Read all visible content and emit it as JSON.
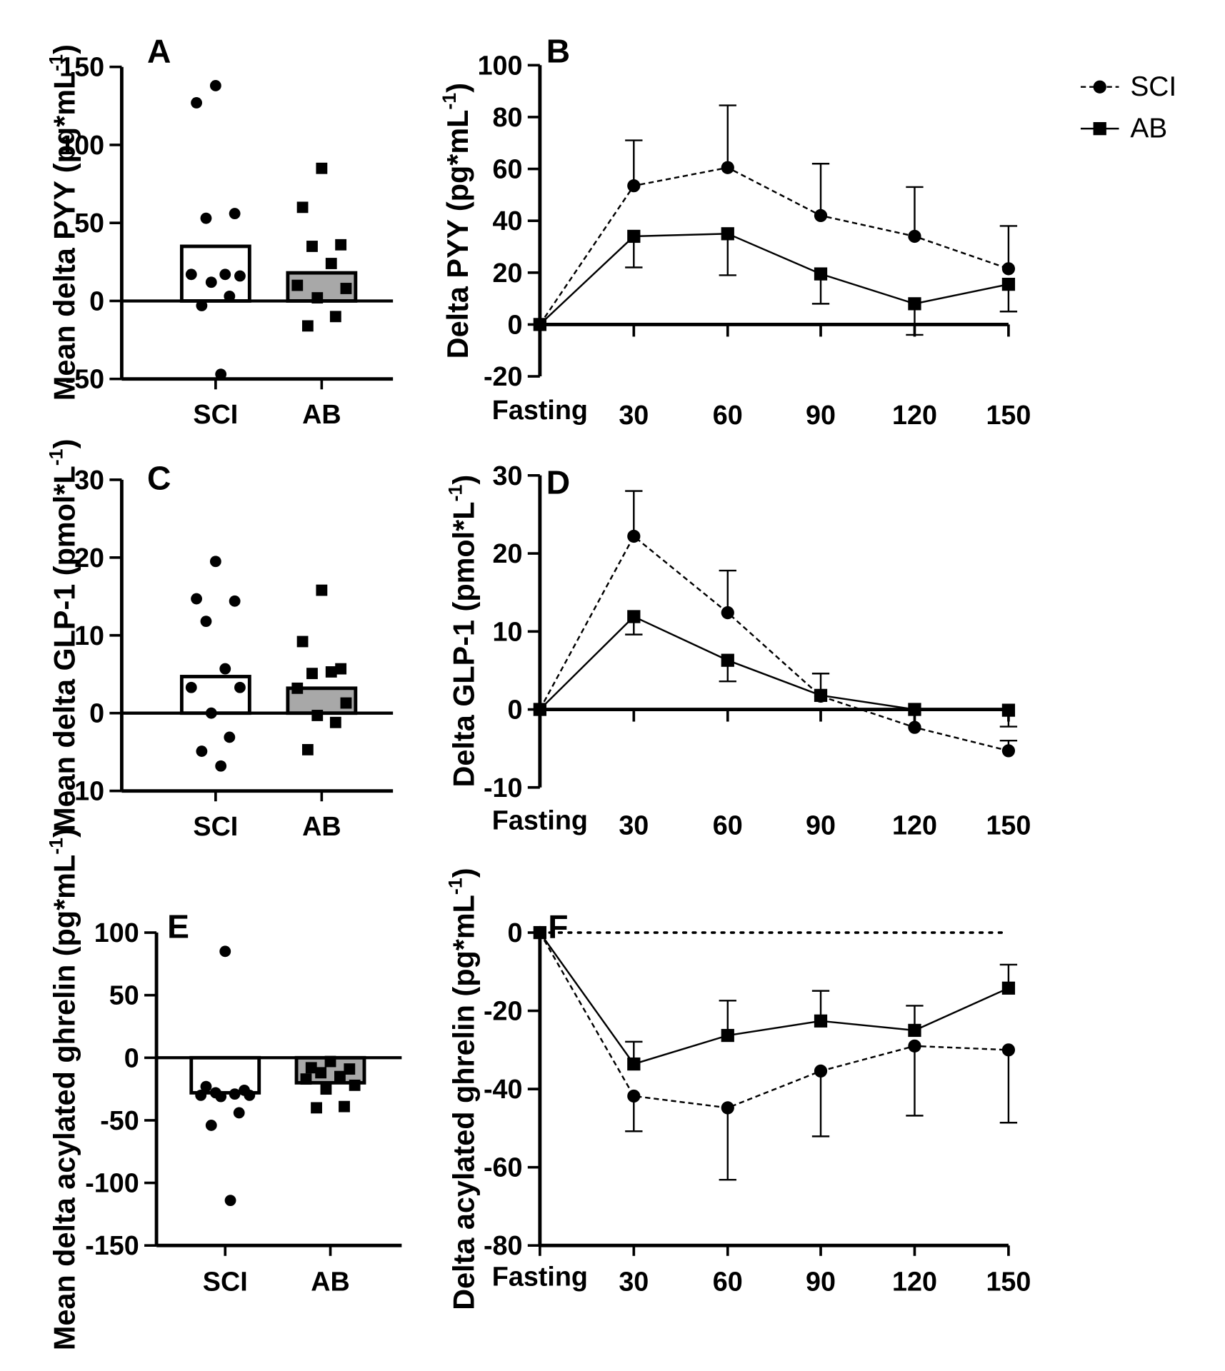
{
  "chart_data": [
    {
      "panel": "A",
      "type": "bar",
      "ylabel": "Mean delta PYY (pg*mL-1)",
      "ylabel_main": "Mean delta PYY (pg*mL",
      "ylabel_sup": "-1",
      "ylabel_close": ")",
      "ylim": [
        -50,
        150
      ],
      "yticks": [
        -50,
        0,
        50,
        100,
        150
      ],
      "categories": [
        "SCI",
        "AB"
      ],
      "bars": [
        {
          "category": "SCI",
          "mean": 35,
          "fill": "#ffffff"
        },
        {
          "category": "AB",
          "mean": 18,
          "fill": "#a8a8a8"
        }
      ],
      "points": {
        "SCI": {
          "marker": "circle",
          "values": [
            138,
            127,
            56,
            53,
            17,
            17,
            16,
            12,
            3,
            -3,
            -47
          ]
        },
        "AB": {
          "marker": "square",
          "values": [
            85,
            60,
            36,
            35,
            24,
            10,
            8,
            2,
            -10,
            -16
          ]
        }
      }
    },
    {
      "panel": "B",
      "type": "line",
      "ylabel": "Delta PYY (pg*mL-1)",
      "ylabel_main": "Delta PYY (pg*mL",
      "ylabel_sup": "-1",
      "ylabel_close": ")",
      "ylim": [
        -20,
        100
      ],
      "yticks": [
        -20,
        0,
        20,
        40,
        60,
        80,
        100
      ],
      "x_categories": [
        "Fasting",
        "30",
        "60",
        "90",
        "120",
        "150"
      ],
      "zero_line": "solid",
      "series": [
        {
          "name": "SCI",
          "marker": "circle",
          "line": "dashed",
          "values": [
            0,
            53.5,
            60.5,
            42,
            34,
            21.5
          ],
          "err_upper": [
            0,
            71,
            84.5,
            62,
            53,
            38
          ],
          "err_lower": [
            0,
            53.5,
            60.5,
            42,
            34,
            21.5
          ]
        },
        {
          "name": "AB",
          "marker": "square",
          "line": "solid",
          "values": [
            0,
            34,
            35,
            19.5,
            8,
            15.5
          ],
          "err_upper": [
            0,
            34,
            35,
            19.5,
            8,
            15.5
          ],
          "err_lower": [
            0,
            22,
            19,
            8,
            -4,
            5
          ]
        }
      ]
    },
    {
      "panel": "C",
      "type": "bar",
      "ylabel": "Mean delta GLP-1 (pmol*L-1)",
      "ylabel_main": "Mean delta GLP-1 (pmol*L",
      "ylabel_sup": "-1",
      "ylabel_close": ")",
      "ylim": [
        -10,
        30
      ],
      "yticks": [
        -10,
        0,
        10,
        20,
        30
      ],
      "categories": [
        "SCI",
        "AB"
      ],
      "bars": [
        {
          "category": "SCI",
          "mean": 4.7,
          "fill": "#ffffff"
        },
        {
          "category": "AB",
          "mean": 3.2,
          "fill": "#a8a8a8"
        }
      ],
      "points": {
        "SCI": {
          "marker": "circle",
          "values": [
            19.5,
            14.7,
            14.4,
            11.8,
            5.7,
            3.3,
            3.3,
            0,
            -3.1,
            -4.9,
            -6.8
          ]
        },
        "AB": {
          "marker": "square",
          "values": [
            15.8,
            9.2,
            5.7,
            5.1,
            5.3,
            3.2,
            1.3,
            -0.3,
            -1.2,
            -4.7
          ]
        }
      }
    },
    {
      "panel": "D",
      "type": "line",
      "ylabel": "Delta GLP-1 (pmol*L-1)",
      "ylabel_main": "Delta GLP-1 (pmol*L",
      "ylabel_sup": "-1",
      "ylabel_close": ")",
      "ylim": [
        -10,
        30
      ],
      "yticks": [
        -10,
        0,
        10,
        20,
        30
      ],
      "x_categories": [
        "Fasting",
        "30",
        "60",
        "90",
        "120",
        "150"
      ],
      "zero_line": "solid",
      "series": [
        {
          "name": "SCI",
          "marker": "circle",
          "line": "dashed",
          "values": [
            0,
            22.2,
            12.4,
            1.7,
            -2.3,
            -5.3
          ],
          "err_upper": [
            0,
            28,
            17.8,
            4.6,
            -2.3,
            -5.3
          ],
          "err_lower": [
            0,
            22.2,
            12.4,
            1.7,
            -2.3,
            -4
          ]
        },
        {
          "name": "AB",
          "marker": "square",
          "line": "solid",
          "values": [
            0,
            11.9,
            6.3,
            1.8,
            0,
            -0.1
          ],
          "err_upper": [
            0,
            11.9,
            6.3,
            1.8,
            0,
            -0.1
          ],
          "err_lower": [
            0,
            9.6,
            3.6,
            1.8,
            0,
            -2.2
          ]
        }
      ]
    },
    {
      "panel": "E",
      "type": "bar",
      "ylabel": "Mean delta acylated ghrelin (pg*mL-1)",
      "ylabel_main": "Mean delta acylated ghrelin (pg*mL",
      "ylabel_sup": "-1",
      "ylabel_close": ")",
      "ylim": [
        -150,
        100
      ],
      "yticks": [
        -150,
        -100,
        -50,
        0,
        50,
        100
      ],
      "categories": [
        "SCI",
        "AB"
      ],
      "bars": [
        {
          "category": "SCI",
          "mean": -28,
          "fill": "#ffffff"
        },
        {
          "category": "AB",
          "mean": -20,
          "fill": "#a8a8a8"
        }
      ],
      "points": {
        "SCI": {
          "marker": "circle",
          "values": [
            85,
            -23,
            -26,
            -28,
            -29,
            -30,
            -30,
            -31,
            -44,
            -54,
            -114
          ]
        },
        "AB": {
          "marker": "square",
          "values": [
            -3,
            -8,
            -9,
            -12,
            -15,
            -17,
            -22,
            -25,
            -39,
            -40
          ]
        }
      }
    },
    {
      "panel": "F",
      "type": "line",
      "ylabel": "Delta acylated ghrelin (pg*mL-1)",
      "ylabel_main": "Delta acylated ghrelin (pg*mL",
      "ylabel_sup": "-1",
      "ylabel_close": ")",
      "ylim": [
        -80,
        0
      ],
      "yticks": [
        -80,
        -60,
        -40,
        -20,
        0
      ],
      "x_categories": [
        "Fasting",
        "30",
        "60",
        "90",
        "120",
        "150"
      ],
      "zero_line": "dotted",
      "series": [
        {
          "name": "SCI",
          "marker": "circle",
          "line": "dashed",
          "values": [
            0,
            -41.8,
            -44.8,
            -35.4,
            -29,
            -30
          ],
          "err_upper": [
            0,
            -41.8,
            -44.8,
            -35.4,
            -29,
            -30
          ],
          "err_lower": [
            0,
            -50.8,
            -63.2,
            -52.1,
            -46.8,
            -48.6
          ]
        },
        {
          "name": "AB",
          "marker": "square",
          "line": "solid",
          "values": [
            0,
            -33.6,
            -26.3,
            -22.6,
            -25,
            -14.2
          ],
          "err_upper": [
            0,
            -27.9,
            -17.4,
            -14.9,
            -18.7,
            -8.2
          ],
          "err_lower": [
            0,
            -33.6,
            -26.3,
            -22.6,
            -25,
            -14.2
          ]
        }
      ]
    }
  ],
  "legend": {
    "placement": "top-right",
    "entries": [
      {
        "name": "SCI",
        "marker": "circle",
        "line": "dashed"
      },
      {
        "name": "AB",
        "marker": "square",
        "line": "solid"
      }
    ]
  }
}
